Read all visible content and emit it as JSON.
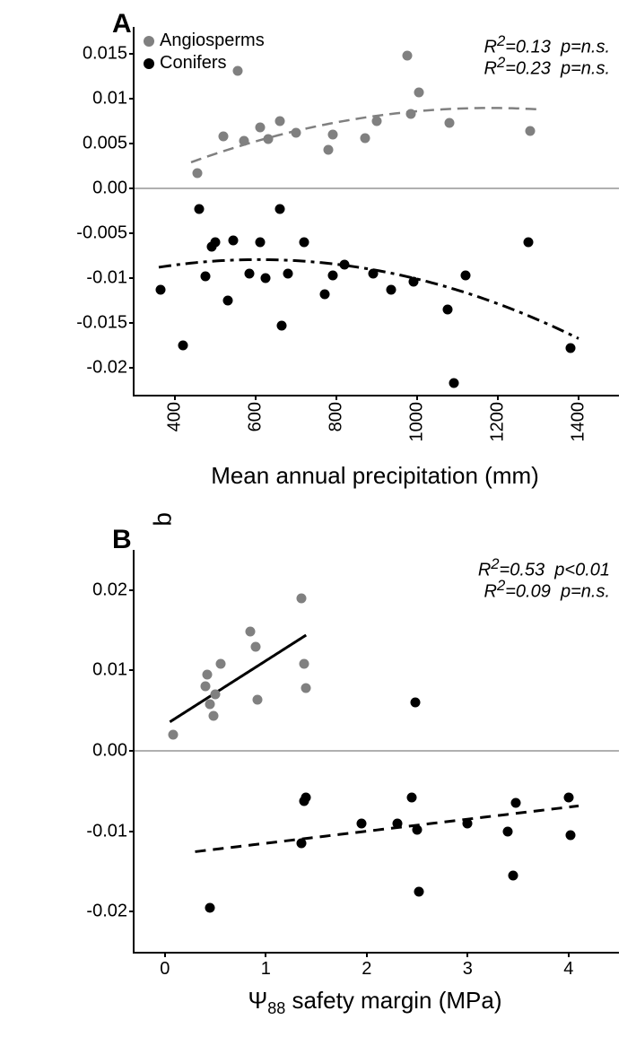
{
  "shared_ylabel": "Temperature beta estimates",
  "colors": {
    "angiosperms": "#808080",
    "conifers": "#000000",
    "zero_line": "#b0b0b0",
    "axis": "#000000"
  },
  "marker_size": 11,
  "panelA": {
    "letter": "A",
    "xlabel": "Mean annual precipitation (mm)",
    "xlim": [
      300,
      1500
    ],
    "ylim": [
      -0.023,
      0.018
    ],
    "xticks": [
      400,
      600,
      800,
      1000,
      1200,
      1400
    ],
    "yticks": [
      -0.02,
      -0.015,
      -0.01,
      -0.005,
      0.0,
      0.005,
      0.01,
      0.015
    ],
    "ytick_labels": [
      "-0.02",
      "-0.015",
      "-0.01",
      "-0.005",
      "0.00",
      "0.005",
      "0.01",
      "0.015"
    ],
    "stats": [
      "R²=0.13  p=n.s.",
      "R²=0.23  p=n.s."
    ],
    "legend": [
      {
        "label": "Angiosperms",
        "color_key": "angiosperms"
      },
      {
        "label": "Conifers",
        "color_key": "conifers"
      }
    ],
    "angiosperms_points": [
      [
        455,
        0.0017
      ],
      [
        520,
        0.0058
      ],
      [
        555,
        0.0131
      ],
      [
        570,
        0.0053
      ],
      [
        610,
        0.0068
      ],
      [
        630,
        0.0055
      ],
      [
        660,
        0.0075
      ],
      [
        700,
        0.0062
      ],
      [
        780,
        0.0043
      ],
      [
        790,
        0.006
      ],
      [
        870,
        0.0056
      ],
      [
        900,
        0.0075
      ],
      [
        975,
        0.0148
      ],
      [
        985,
        0.0083
      ],
      [
        1005,
        0.0107
      ],
      [
        1080,
        0.0073
      ],
      [
        1280,
        0.0064
      ]
    ],
    "conifers_points": [
      [
        365,
        -0.0113
      ],
      [
        420,
        -0.0175
      ],
      [
        460,
        -0.0023
      ],
      [
        475,
        -0.0098
      ],
      [
        490,
        -0.0065
      ],
      [
        500,
        -0.006
      ],
      [
        530,
        -0.0125
      ],
      [
        545,
        -0.0058
      ],
      [
        585,
        -0.0095
      ],
      [
        610,
        -0.006
      ],
      [
        625,
        -0.01
      ],
      [
        660,
        -0.0023
      ],
      [
        665,
        -0.0153
      ],
      [
        680,
        -0.0095
      ],
      [
        720,
        -0.006
      ],
      [
        770,
        -0.0118
      ],
      [
        790,
        -0.0097
      ],
      [
        820,
        -0.0085
      ],
      [
        890,
        -0.0095
      ],
      [
        935,
        -0.0113
      ],
      [
        990,
        -0.0104
      ],
      [
        1075,
        -0.0135
      ],
      [
        1090,
        -0.0217
      ],
      [
        1120,
        -0.0097
      ],
      [
        1275,
        -0.006
      ],
      [
        1380,
        -0.0178
      ]
    ],
    "angio_curve": {
      "a": -1.1e-08,
      "b": 2.6e-05,
      "c": -0.0064,
      "x0": 440,
      "x1": 1300,
      "dash": "12,7",
      "width": 2.5,
      "color_key": "angiosperms"
    },
    "conif_curve": {
      "a": -1.4e-08,
      "b": 1.7e-05,
      "c": -0.0131,
      "x0": 360,
      "x1": 1400,
      "dash": "14,6,4,6",
      "width": 3,
      "color_key": "conifers"
    }
  },
  "panelB": {
    "letter": "B",
    "xlabel_prefix": "Ψ",
    "xlabel_sub": "88",
    "xlabel_suffix": " safety margin (MPa)",
    "xlim": [
      -0.3,
      4.5
    ],
    "ylim": [
      -0.025,
      0.025
    ],
    "xticks": [
      0,
      1,
      2,
      3,
      4
    ],
    "yticks": [
      -0.02,
      -0.01,
      0.0,
      0.01,
      0.02
    ],
    "ytick_labels": [
      "-0.02",
      "-0.01",
      "0.00",
      "0.01",
      "0.02"
    ],
    "stats": [
      "R²=0.53  p<0.01",
      "R²=0.09  p=n.s."
    ],
    "angiosperms_points": [
      [
        0.08,
        0.002
      ],
      [
        0.4,
        0.008
      ],
      [
        0.42,
        0.0095
      ],
      [
        0.45,
        0.0058
      ],
      [
        0.48,
        0.0044
      ],
      [
        0.5,
        0.007
      ],
      [
        0.55,
        0.0108
      ],
      [
        0.85,
        0.0148
      ],
      [
        0.9,
        0.013
      ],
      [
        0.92,
        0.0064
      ],
      [
        1.35,
        0.019
      ],
      [
        1.38,
        0.0108
      ],
      [
        1.4,
        0.0078
      ]
    ],
    "conifers_points": [
      [
        0.45,
        -0.0195
      ],
      [
        1.35,
        -0.0115
      ],
      [
        1.38,
        -0.0063
      ],
      [
        1.4,
        -0.0058
      ],
      [
        1.95,
        -0.009
      ],
      [
        2.3,
        -0.009
      ],
      [
        2.45,
        -0.0058
      ],
      [
        2.48,
        0.006
      ],
      [
        2.5,
        -0.0098
      ],
      [
        2.52,
        -0.0175
      ],
      [
        3.0,
        -0.009
      ],
      [
        3.4,
        -0.01
      ],
      [
        3.45,
        -0.0155
      ],
      [
        3.48,
        -0.0065
      ],
      [
        4.0,
        -0.0058
      ],
      [
        4.02,
        -0.0105
      ]
    ],
    "angio_line": {
      "m": 0.008,
      "b": 0.0032,
      "x0": 0.05,
      "x1": 1.4,
      "dash": "",
      "width": 3,
      "color_key": "conifers"
    },
    "conif_line": {
      "m": 0.0015,
      "b": -0.013,
      "x0": 0.3,
      "x1": 4.1,
      "dash": "12,8",
      "width": 3,
      "color_key": "conifers"
    }
  }
}
